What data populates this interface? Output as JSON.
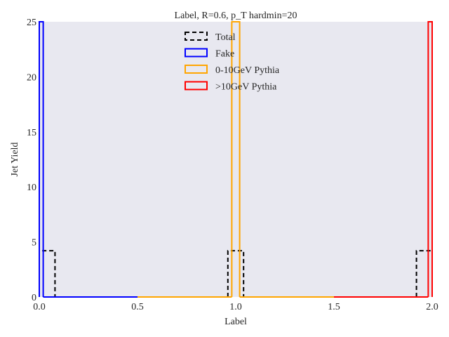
{
  "chart_data": {
    "type": "histogram-step",
    "title": "Label, R=0.6, p_T hardmin=20",
    "xlabel": "Label",
    "ylabel": "Jet Yield",
    "xlim": [
      0.0,
      2.0
    ],
    "ylim": [
      0,
      25
    ],
    "xticks": [
      0.0,
      0.5,
      1.0,
      1.5,
      2.0
    ],
    "xtick_labels": [
      "0.0",
      "0.5",
      "1.0",
      "1.5",
      "2.0"
    ],
    "yticks": [
      0,
      5,
      10,
      15,
      20,
      25
    ],
    "ytick_labels": [
      "0",
      "5",
      "10",
      "15",
      "20",
      "25"
    ],
    "grid": false,
    "background": "#e8e8f0",
    "legend_position": "upper center",
    "series": [
      {
        "name": "Total",
        "color": "#000000",
        "style": "dashed",
        "bins": [
          {
            "x0": 0.0,
            "x1": 0.08,
            "y": 4.2
          },
          {
            "x0": 0.96,
            "x1": 1.04,
            "y": 4.2
          },
          {
            "x0": 1.92,
            "x1": 2.0,
            "y": 4.2
          }
        ]
      },
      {
        "name": "Fake",
        "color": "#0000ff",
        "style": "solid",
        "bins": [
          {
            "x0": 0.0,
            "x1": 0.02,
            "y": 25
          },
          {
            "x0": 0.02,
            "x1": 0.5,
            "y": 0
          }
        ]
      },
      {
        "name": "0-10GeV Pythia",
        "color": "#ffa500",
        "style": "solid",
        "bins": [
          {
            "x0": 0.5,
            "x1": 0.98,
            "y": 0
          },
          {
            "x0": 0.98,
            "x1": 1.02,
            "y": 25
          },
          {
            "x0": 1.02,
            "x1": 1.5,
            "y": 0
          }
        ]
      },
      {
        "name": ">10GeV Pythia",
        "color": "#ff0000",
        "style": "solid",
        "bins": [
          {
            "x0": 1.5,
            "x1": 1.98,
            "y": 0
          },
          {
            "x0": 1.98,
            "x1": 2.0,
            "y": 25
          }
        ]
      }
    ]
  }
}
